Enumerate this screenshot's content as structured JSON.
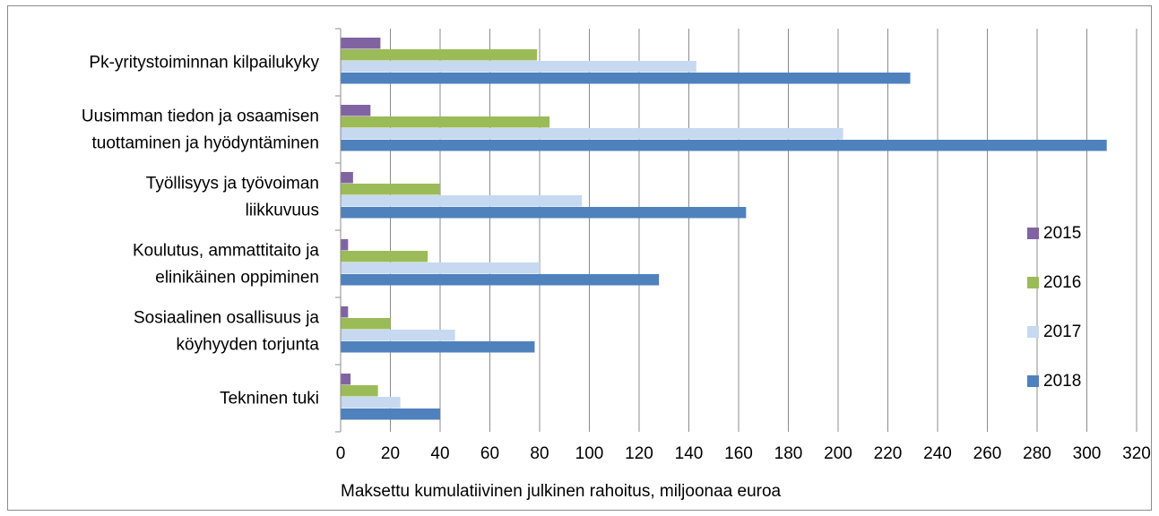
{
  "chart_data": {
    "type": "bar",
    "orientation": "horizontal",
    "categories": [
      [
        "Pk-yritystoiminnan kilpailukyky"
      ],
      [
        "Uusimman tiedon ja osaamisen",
        "tuottaminen ja hyödyntäminen"
      ],
      [
        "Työllisyys ja työvoiman",
        "liikkuvuus"
      ],
      [
        "Koulutus, ammattitaito ja",
        "elinikäinen oppiminen"
      ],
      [
        "Sosiaalinen osallisuus ja",
        "köyhyyden torjunta"
      ],
      [
        "Tekninen tuki"
      ]
    ],
    "series": [
      {
        "name": "2015",
        "color": "#8064a2",
        "values": [
          16,
          12,
          5,
          3,
          3,
          4
        ]
      },
      {
        "name": "2016",
        "color": "#9bbb59",
        "values": [
          79,
          84,
          40,
          35,
          20,
          15
        ]
      },
      {
        "name": "2017",
        "color": "#c6d9f1",
        "values": [
          143,
          202,
          97,
          80,
          46,
          24
        ]
      },
      {
        "name": "2018",
        "color": "#4f81bd",
        "values": [
          229,
          308,
          163,
          128,
          78,
          40
        ]
      }
    ],
    "xlabel": "Maksettu kumulatiivinen julkinen rahoitus, miljoonaa euroa",
    "xlim": [
      0,
      320
    ],
    "xticks": [
      0,
      20,
      40,
      60,
      80,
      100,
      120,
      140,
      160,
      180,
      200,
      220,
      240,
      260,
      280,
      300,
      320
    ],
    "grid": true,
    "legend_position": "right"
  }
}
